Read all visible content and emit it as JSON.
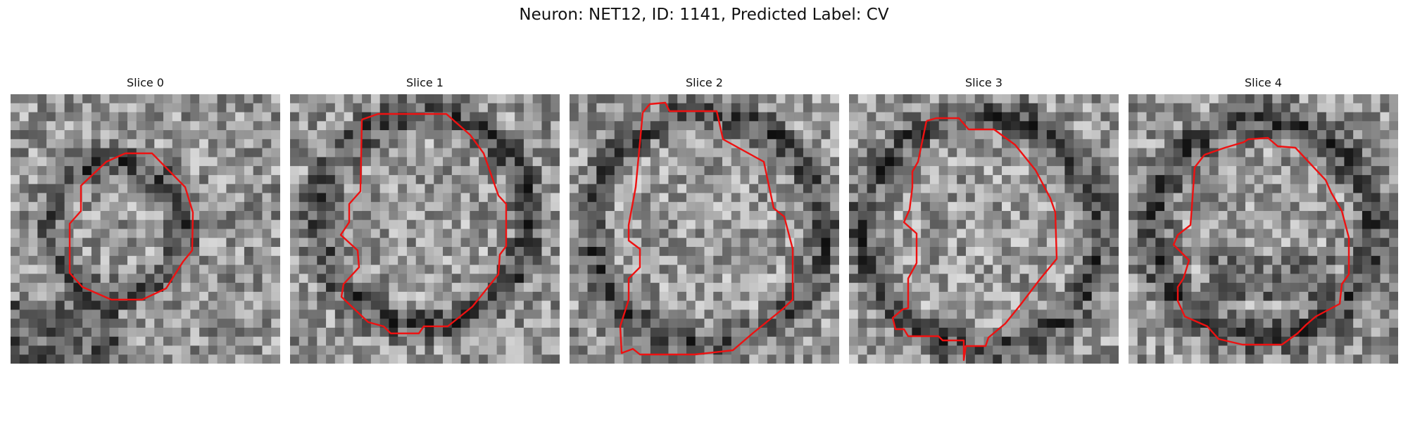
{
  "figure": {
    "title": "Neuron: NET12, ID: 1141, Predicted Label: CV"
  },
  "panels": [
    {
      "title": "Slice 0",
      "outline_color": "#ee1111",
      "seed": 11
    },
    {
      "title": "Slice 1",
      "outline_color": "#ee1111",
      "seed": 23
    },
    {
      "title": "Slice 2",
      "outline_color": "#ee1111",
      "seed": 37
    },
    {
      "title": "Slice 3",
      "outline_color": "#ee1111",
      "seed": 41
    },
    {
      "title": "Slice 4",
      "outline_color": "#ee1111",
      "seed": 59
    }
  ],
  "colors": {
    "background": "#ffffff",
    "colormap": "grayscale"
  }
}
